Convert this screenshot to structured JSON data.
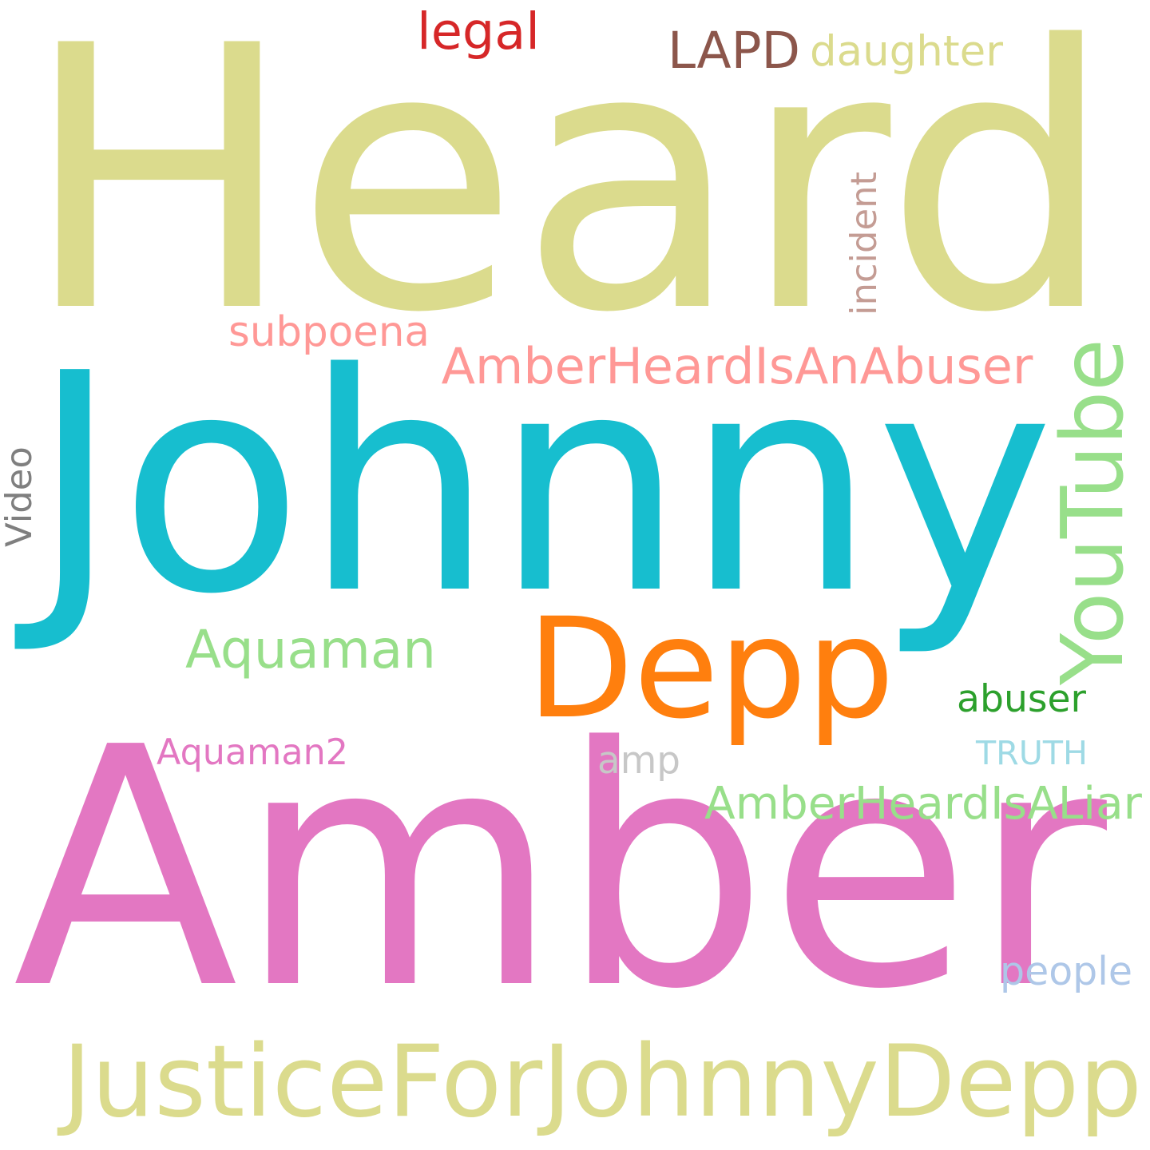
{
  "words": [
    {
      "id": "heard",
      "text": "Heard",
      "color": "#dbdb8d",
      "vertical": false
    },
    {
      "id": "johnny",
      "text": "Johnny",
      "color": "#17becf",
      "vertical": false
    },
    {
      "id": "amber",
      "text": "Amber",
      "color": "#e377c2",
      "vertical": false
    },
    {
      "id": "depp",
      "text": "Depp",
      "color": "#ff7f0e",
      "vertical": false
    },
    {
      "id": "justicefor",
      "text": "JusticeForJohnnyDepp",
      "color": "#dbdb8d",
      "vertical": false
    },
    {
      "id": "youtube",
      "text": "YouTube",
      "color": "#98df8a",
      "vertical": true
    },
    {
      "id": "abuser-tag",
      "text": "AmberHeardIsAnAbuser",
      "color": "#ff9896",
      "vertical": false
    },
    {
      "id": "aquaman",
      "text": "Aquaman",
      "color": "#98df8a",
      "vertical": false
    },
    {
      "id": "lapd",
      "text": "LAPD",
      "color": "#8c564b",
      "vertical": false
    },
    {
      "id": "daughter",
      "text": "daughter",
      "color": "#dbdb8d",
      "vertical": false
    },
    {
      "id": "legal",
      "text": "legal",
      "color": "#d62728",
      "vertical": false
    },
    {
      "id": "incident",
      "text": "incident",
      "color": "#c49c94",
      "vertical": true
    },
    {
      "id": "subpoena",
      "text": "subpoena",
      "color": "#ff9896",
      "vertical": false
    },
    {
      "id": "video",
      "text": "Video",
      "color": "#7f7f7f",
      "vertical": true
    },
    {
      "id": "abuser",
      "text": "abuser",
      "color": "#2ca02c",
      "vertical": false
    },
    {
      "id": "aquaman2",
      "text": "Aquaman2",
      "color": "#e377c2",
      "vertical": false
    },
    {
      "id": "amp",
      "text": "amp",
      "color": "#c7c7c7",
      "vertical": false
    },
    {
      "id": "truth",
      "text": "TRUTH",
      "color": "#9edae5",
      "vertical": false
    },
    {
      "id": "liar-tag",
      "text": "AmberHeardIsALiar",
      "color": "#98df8a",
      "vertical": false
    },
    {
      "id": "people",
      "text": "people",
      "color": "#aec7e8",
      "vertical": false
    }
  ]
}
